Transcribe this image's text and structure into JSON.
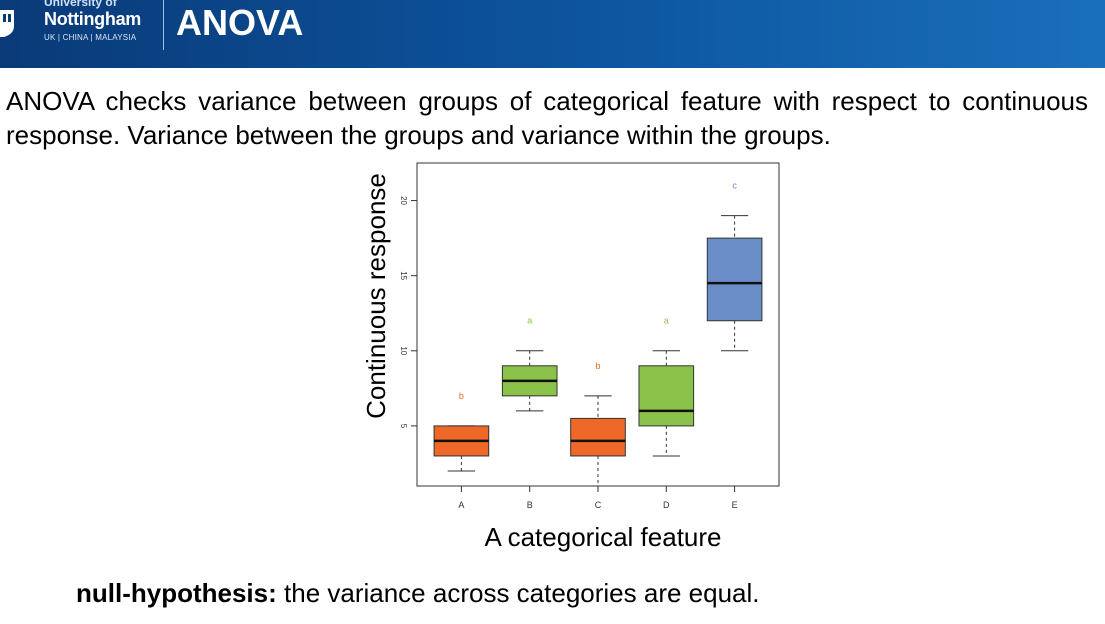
{
  "header": {
    "logo_university_of": "University of",
    "logo_name": "Nottingham",
    "logo_campuses": "UK | CHINA | MALAYSIA",
    "title": "ANOVA"
  },
  "intro_text": "ANOVA checks variance between groups of categorical feature with respect to continuous response. Variance between the groups and variance within the groups.",
  "chart_data": {
    "type": "boxplot",
    "xlabel": "A categorical feature",
    "ylabel": "Continuous response",
    "ylim": [
      1,
      22.5
    ],
    "yticks": [
      5,
      10,
      15,
      20
    ],
    "categories": [
      "A",
      "B",
      "C",
      "D",
      "E"
    ],
    "boxes": [
      {
        "category": "A",
        "min": 2,
        "q1": 3,
        "median": 4,
        "q3": 5,
        "max": 5,
        "group_letter": "b",
        "letter_y": 7,
        "color": "#ee6828"
      },
      {
        "category": "B",
        "min": 6,
        "q1": 7,
        "median": 8,
        "q3": 9,
        "max": 10,
        "group_letter": "a",
        "letter_y": 12,
        "color": "#8bc34a"
      },
      {
        "category": "C",
        "min": 1,
        "q1": 3,
        "median": 4,
        "q3": 5.5,
        "max": 7,
        "group_letter": "b",
        "letter_y": 9,
        "color": "#ee6828"
      },
      {
        "category": "D",
        "min": 3,
        "q1": 5,
        "median": 6,
        "q3": 9,
        "max": 10,
        "group_letter": "a",
        "letter_y": 12,
        "color": "#8bc34a"
      },
      {
        "category": "E",
        "min": 10,
        "q1": 12,
        "median": 14.5,
        "q3": 17.5,
        "max": 19,
        "group_letter": "c",
        "letter_y": 21,
        "color": "#6b8ec9"
      }
    ],
    "grid": false,
    "legend": "none"
  },
  "null_hypothesis": {
    "label": "null-hypothesis:",
    "text": " the variance across categories are equal."
  }
}
